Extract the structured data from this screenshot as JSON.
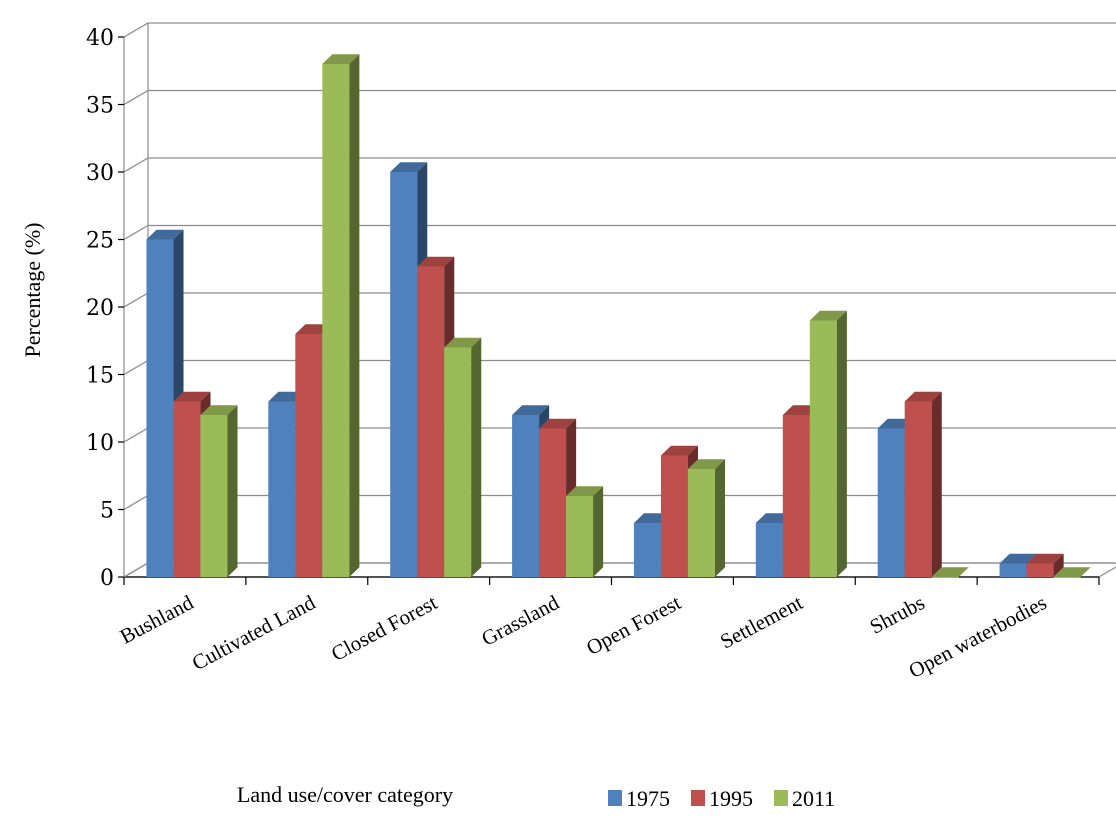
{
  "chart_data": {
    "type": "bar",
    "title": "",
    "xlabel": "Land use/cover category",
    "ylabel": "Percentage (%)",
    "ylim": [
      0,
      40
    ],
    "yticks": [
      "0",
      "5",
      "10",
      "15",
      "20",
      "25",
      "30",
      "35",
      "40"
    ],
    "categories": [
      "Bushland",
      "Cultivated Land",
      "Closed Forest",
      "Grassland",
      "Open Forest",
      "Settlement",
      "Shrubs",
      "Open waterbodies"
    ],
    "series": [
      {
        "name": "1975",
        "color": "#4F81BD",
        "values": [
          25,
          13,
          30,
          12,
          4,
          4,
          11,
          1
        ]
      },
      {
        "name": "1995",
        "color": "#C0504D",
        "values": [
          13,
          18,
          23,
          11,
          9,
          12,
          13,
          1
        ]
      },
      {
        "name": "2011",
        "color": "#9BBB59",
        "values": [
          12,
          38,
          17,
          6,
          8,
          19,
          0,
          0
        ]
      }
    ],
    "grid": true,
    "legend_position": "bottom"
  }
}
